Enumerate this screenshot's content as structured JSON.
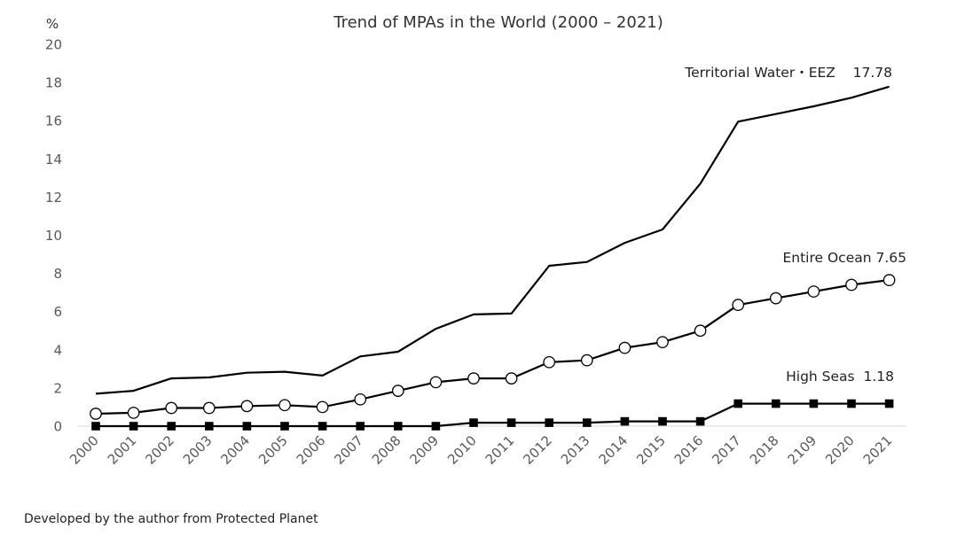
{
  "chart_data": {
    "type": "line",
    "title": "Trend of MPAs in the World (2000 – 2021)",
    "ylabel": "%",
    "xlabel": "",
    "ylim": [
      0,
      20
    ],
    "yticks": [
      "0",
      "2",
      "4",
      "6",
      "8",
      "10",
      "12",
      "14",
      "16",
      "18",
      "20"
    ],
    "categories": [
      "2000",
      "2001",
      "2002",
      "2003",
      "2004",
      "2005",
      "2006",
      "2007",
      "2008",
      "2009",
      "2010",
      "2011",
      "2012",
      "2013",
      "2014",
      "2015",
      "2016",
      "2017",
      "2018",
      "2109",
      "2020",
      "2021"
    ],
    "grid": false,
    "series": [
      {
        "name": "Territorial Water・EEZ",
        "marker": "none",
        "label": "Territorial Water・EEZ    17.78",
        "values": [
          1.7,
          1.85,
          2.5,
          2.55,
          2.8,
          2.85,
          2.65,
          3.65,
          3.9,
          5.1,
          5.85,
          5.9,
          8.4,
          8.6,
          9.6,
          10.3,
          12.7,
          15.95,
          16.35,
          16.75,
          17.2,
          17.78
        ]
      },
      {
        "name": "Entire Ocean",
        "marker": "open-circle",
        "label": "Entire Ocean 7.65",
        "values": [
          0.65,
          0.7,
          0.95,
          0.95,
          1.05,
          1.1,
          1.0,
          1.4,
          1.85,
          2.3,
          2.5,
          2.5,
          3.35,
          3.45,
          4.1,
          4.4,
          5.0,
          6.35,
          6.7,
          7.05,
          7.4,
          7.65
        ]
      },
      {
        "name": "High Seas",
        "marker": "filled-square",
        "label": "High Seas  1.18",
        "values": [
          0,
          0,
          0,
          0,
          0,
          0,
          0,
          0,
          0,
          0,
          0.18,
          0.18,
          0.18,
          0.18,
          0.25,
          0.25,
          0.25,
          1.18,
          1.18,
          1.18,
          1.18,
          1.18
        ]
      }
    ]
  },
  "source_note": "Developed by the author from Protected Planet",
  "colors": {
    "line": "#000000",
    "axis": "#d9d9d9",
    "tick_text": "#595959"
  }
}
